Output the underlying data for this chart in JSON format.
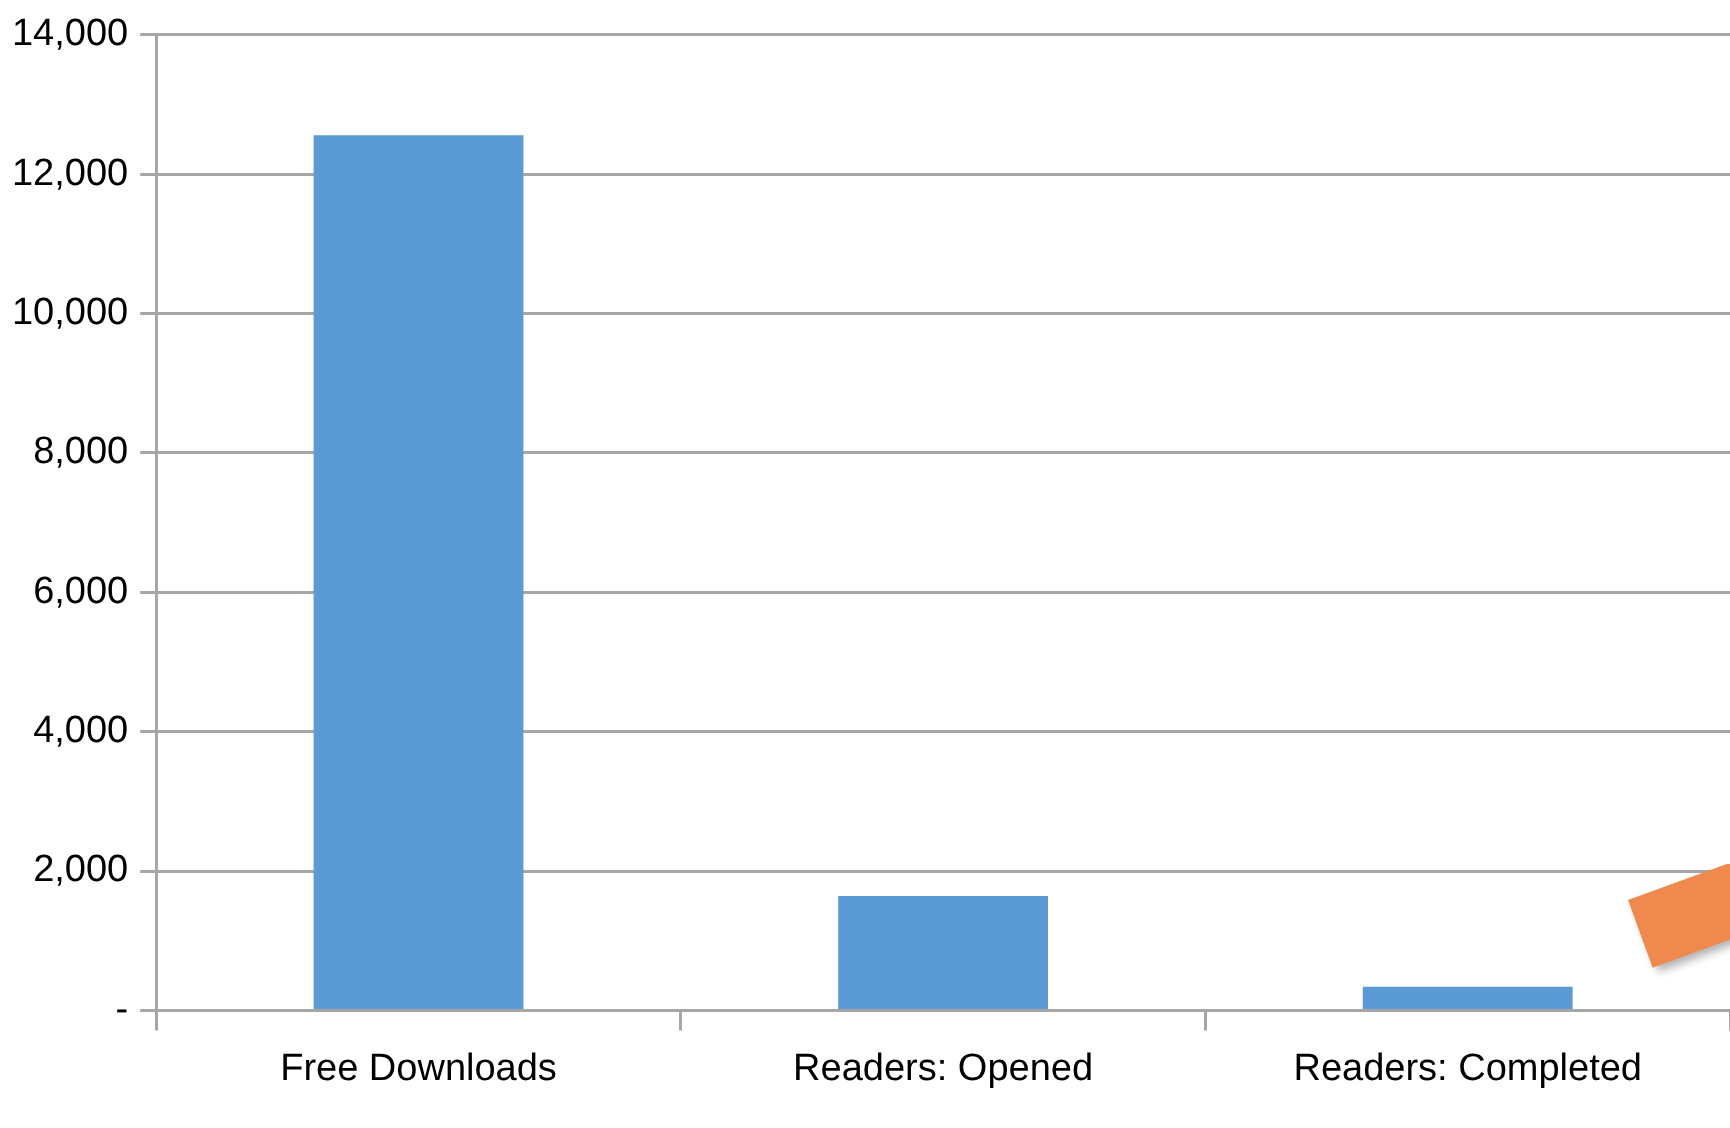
{
  "chart_data": {
    "type": "bar",
    "categories": [
      "Free Downloads",
      "Readers: Opened",
      "Readers: Completed"
    ],
    "values": [
      12560,
      1640,
      340
    ],
    "color": "#5b9bd5",
    "ylim": [
      0,
      14000
    ],
    "yticks": [
      {
        "value": 0,
        "label": "-"
      },
      {
        "value": 2000,
        "label": "2,000"
      },
      {
        "value": 4000,
        "label": "4,000"
      },
      {
        "value": 6000,
        "label": "6,000"
      },
      {
        "value": 8000,
        "label": "8,000"
      },
      {
        "value": 10000,
        "label": "10,000"
      },
      {
        "value": 12000,
        "label": "12,000"
      },
      {
        "value": 14000,
        "label": "14,000"
      }
    ],
    "grid": "y",
    "legend": false
  }
}
